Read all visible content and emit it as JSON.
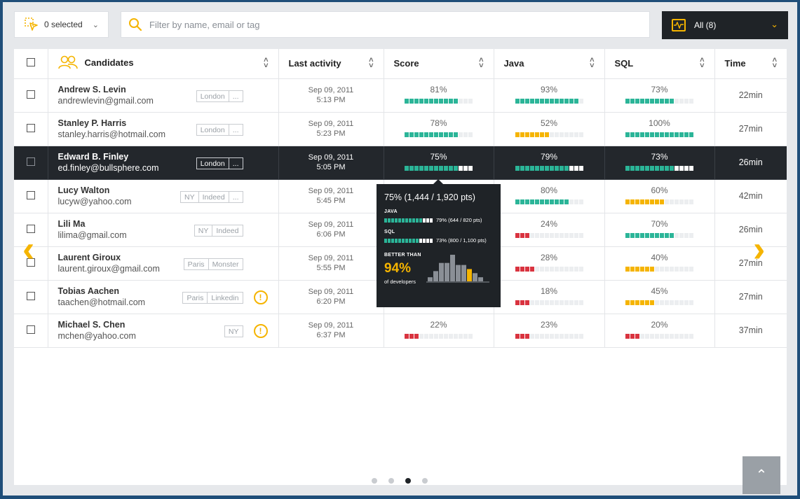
{
  "toolbar": {
    "selected_label": "0 selected",
    "filter_placeholder": "Filter by name, email or tag",
    "view_label": "All (8)"
  },
  "columns": {
    "candidates": "Candidates",
    "last_activity": "Last activity",
    "score": "Score",
    "java": "Java",
    "sql": "SQL",
    "time": "Time"
  },
  "colors": {
    "good": "#2bb598",
    "mid": "#f5b400",
    "low": "#d9333f",
    "accent": "#f5b400"
  },
  "rows": [
    {
      "name": "Andrew S. Levin",
      "email": "andrewlevin@gmail.com",
      "tags": [
        "London",
        "..."
      ],
      "warn": false,
      "date": "Sep 09, 2011",
      "time_of_day": "5:13 PM",
      "score": {
        "pct": "81%",
        "value": 81,
        "level": "good"
      },
      "java": {
        "pct": "93%",
        "value": 93,
        "level": "good"
      },
      "sql": {
        "pct": "73%",
        "value": 73,
        "level": "good"
      },
      "time": "22min"
    },
    {
      "name": "Stanley P. Harris",
      "email": "stanley.harris@hotmail.com",
      "tags": [
        "London",
        "..."
      ],
      "warn": false,
      "date": "Sep 09, 2011",
      "time_of_day": "5:23 PM",
      "score": {
        "pct": "78%",
        "value": 78,
        "level": "good"
      },
      "java": {
        "pct": "52%",
        "value": 52,
        "level": "mid"
      },
      "sql": {
        "pct": "100%",
        "value": 100,
        "level": "good"
      },
      "time": "27min"
    },
    {
      "name": "Edward B. Finley",
      "email": "ed.finley@bullsphere.com",
      "tags": [
        "London",
        "..."
      ],
      "warn": false,
      "date": "Sep 09, 2011",
      "time_of_day": "5:05 PM",
      "score": {
        "pct": "75%",
        "value": 75,
        "level": "good"
      },
      "java": {
        "pct": "79%",
        "value": 79,
        "level": "good"
      },
      "sql": {
        "pct": "73%",
        "value": 73,
        "level": "good"
      },
      "time": "26min",
      "active": true
    },
    {
      "name": "Lucy Walton",
      "email": "lucyw@yahoo.com",
      "tags": [
        "NY",
        "Indeed",
        "..."
      ],
      "warn": false,
      "date": "Sep 09, 2011",
      "time_of_day": "5:45 PM",
      "score": {
        "pct": "",
        "value": 0,
        "level": "good"
      },
      "java": {
        "pct": "80%",
        "value": 80,
        "level": "good"
      },
      "sql": {
        "pct": "60%",
        "value": 60,
        "level": "mid"
      },
      "time": "42min"
    },
    {
      "name": "Lili Ma",
      "email": "lilima@gmail.com",
      "tags": [
        "NY",
        "Indeed"
      ],
      "warn": false,
      "date": "Sep 09, 2011",
      "time_of_day": "6:06 PM",
      "score": {
        "pct": "",
        "value": 0,
        "level": "good"
      },
      "java": {
        "pct": "24%",
        "value": 24,
        "level": "low"
      },
      "sql": {
        "pct": "70%",
        "value": 70,
        "level": "good"
      },
      "time": "26min"
    },
    {
      "name": "Laurent Giroux",
      "email": "laurent.giroux@gmail.com",
      "tags": [
        "Paris",
        "Monster"
      ],
      "warn": false,
      "date": "Sep 09, 2011",
      "time_of_day": "5:55 PM",
      "score": {
        "pct": "",
        "value": 0,
        "level": "good"
      },
      "java": {
        "pct": "28%",
        "value": 28,
        "level": "low"
      },
      "sql": {
        "pct": "40%",
        "value": 40,
        "level": "mid"
      },
      "time": "27min"
    },
    {
      "name": "Tobias Aachen",
      "email": "taachen@hotmail.com",
      "tags": [
        "Paris",
        "Linkedin"
      ],
      "warn": true,
      "date": "Sep 09, 2011",
      "time_of_day": "6:20 PM",
      "score": {
        "pct": "",
        "value": 0,
        "level": "good"
      },
      "java": {
        "pct": "18%",
        "value": 18,
        "level": "low"
      },
      "sql": {
        "pct": "45%",
        "value": 45,
        "level": "mid"
      },
      "time": "27min"
    },
    {
      "name": "Michael S. Chen",
      "email": "mchen@yahoo.com",
      "tags": [
        "NY"
      ],
      "warn": true,
      "date": "Sep 09, 2011",
      "time_of_day": "6:37 PM",
      "score": {
        "pct": "22%",
        "value": 22,
        "level": "low"
      },
      "java": {
        "pct": "23%",
        "value": 23,
        "level": "low"
      },
      "sql": {
        "pct": "20%",
        "value": 20,
        "level": "low"
      },
      "time": "37min"
    }
  ],
  "tooltip": {
    "title": "75% (1,444 / 1,920 pts)",
    "java_label": "JAVA",
    "java_value": 79,
    "java_text": "79% (644 / 820 pts)",
    "sql_label": "SQL",
    "sql_value": 73,
    "sql_text": "73% (800 / 1,100 pts)",
    "better_label": "BETTER THAN",
    "better_value": "94%",
    "better_sub": "of developers",
    "histogram": [
      2,
      5,
      9,
      9,
      13,
      8,
      8,
      6,
      4,
      2
    ]
  },
  "pagination": {
    "pages": 4,
    "current": 2
  },
  "icons": {
    "select": "select-cursor-icon",
    "search": "search-icon",
    "view": "activity-icon",
    "candidates": "people-icon",
    "warning": "warning-icon",
    "prev": "chevron-left-icon",
    "next": "chevron-right-icon",
    "top": "arrow-up-icon"
  }
}
